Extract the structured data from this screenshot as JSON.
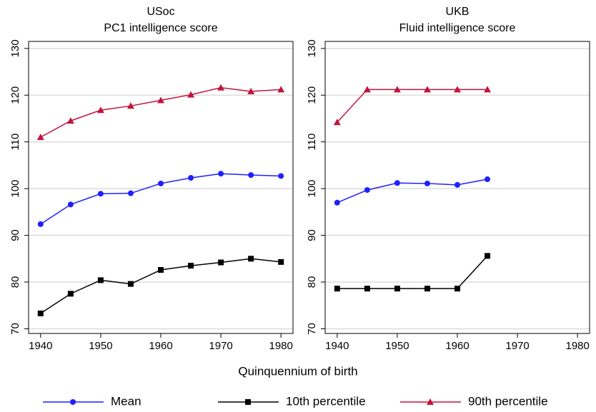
{
  "chart_data": [
    {
      "type": "line",
      "title": "USoc",
      "subtitle": "PC1 intelligence score",
      "x": [
        1940,
        1945,
        1950,
        1955,
        1960,
        1965,
        1970,
        1975,
        1980
      ],
      "xlim": [
        1938,
        1982
      ],
      "xticks": [
        1940,
        1950,
        1960,
        1970,
        1980
      ],
      "ylim": [
        69,
        131.5
      ],
      "yticks": [
        70,
        80,
        90,
        100,
        110,
        120,
        130
      ],
      "grid": true,
      "series": [
        {
          "name": "Mean",
          "color": "#1f1fff",
          "marker": "circle",
          "values": [
            92.4,
            96.6,
            98.9,
            99.0,
            101.1,
            102.3,
            103.2,
            102.9,
            102.7
          ]
        },
        {
          "name": "10th percentile",
          "color": "#000000",
          "marker": "square",
          "values": [
            73.3,
            77.5,
            80.4,
            79.6,
            82.6,
            83.5,
            84.2,
            85.0,
            84.3
          ]
        },
        {
          "name": "90th percentile",
          "color": "#c0143c",
          "marker": "triangle",
          "values": [
            111.0,
            114.5,
            116.8,
            117.7,
            118.9,
            120.1,
            121.6,
            120.8,
            121.2
          ]
        }
      ]
    },
    {
      "type": "line",
      "title": "UKB",
      "subtitle": "Fluid intelligence score",
      "x": [
        1940,
        1945,
        1950,
        1955,
        1960,
        1965
      ],
      "xlim": [
        1938,
        1982
      ],
      "xticks": [
        1940,
        1950,
        1960,
        1970,
        1980
      ],
      "ylim": [
        69,
        131.5
      ],
      "yticks": [
        70,
        80,
        90,
        100,
        110,
        120,
        130
      ],
      "grid": true,
      "series": [
        {
          "name": "Mean",
          "color": "#1f1fff",
          "marker": "circle",
          "values": [
            97.0,
            99.7,
            101.2,
            101.1,
            100.8,
            102.0
          ]
        },
        {
          "name": "10th percentile",
          "color": "#000000",
          "marker": "square",
          "values": [
            78.6,
            78.6,
            78.6,
            78.6,
            78.6,
            85.6
          ]
        },
        {
          "name": "90th percentile",
          "color": "#c0143c",
          "marker": "triangle",
          "values": [
            114.2,
            121.2,
            121.2,
            121.2,
            121.2,
            121.2
          ]
        }
      ]
    }
  ],
  "xlabel": "Quinquennium of birth"
}
